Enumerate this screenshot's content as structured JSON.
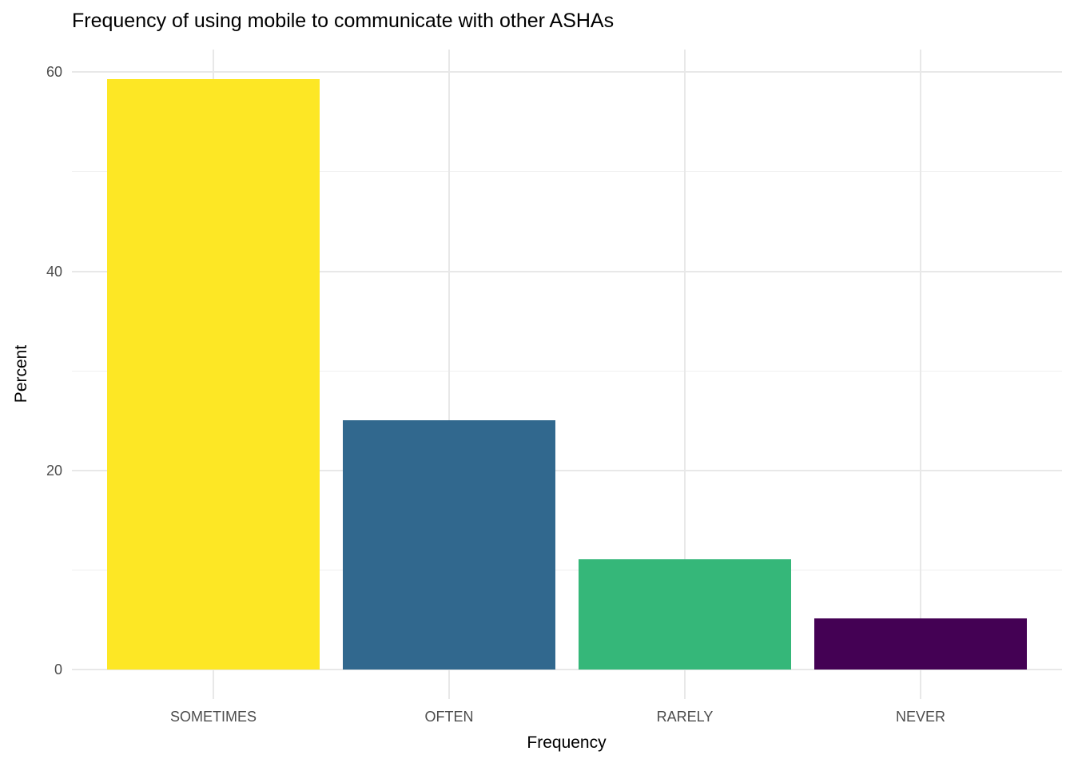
{
  "chart_data": {
    "type": "bar",
    "title": "Frequency of using mobile to communicate with other ASHAs",
    "xlabel": "Frequency",
    "ylabel": "Percent",
    "categories": [
      "SOMETIMES",
      "OFTEN",
      "RARELY",
      "NEVER"
    ],
    "values": [
      59.3,
      25.0,
      11.1,
      5.1
    ],
    "bar_colors": [
      "#FDE725",
      "#31688E",
      "#35B779",
      "#440154"
    ],
    "ylim": [
      0,
      62.3
    ],
    "yticks": [
      0,
      20,
      40,
      60
    ],
    "yticks_minor": [
      10,
      30,
      50
    ],
    "grid": "on",
    "legend": "none",
    "theme": {
      "background": "#FFFFFF",
      "grid_major": "#E8E8E8",
      "grid_minor": "#F0F0F0",
      "tick_label_color": "#4D4D4D",
      "text_color": "#000000"
    }
  }
}
